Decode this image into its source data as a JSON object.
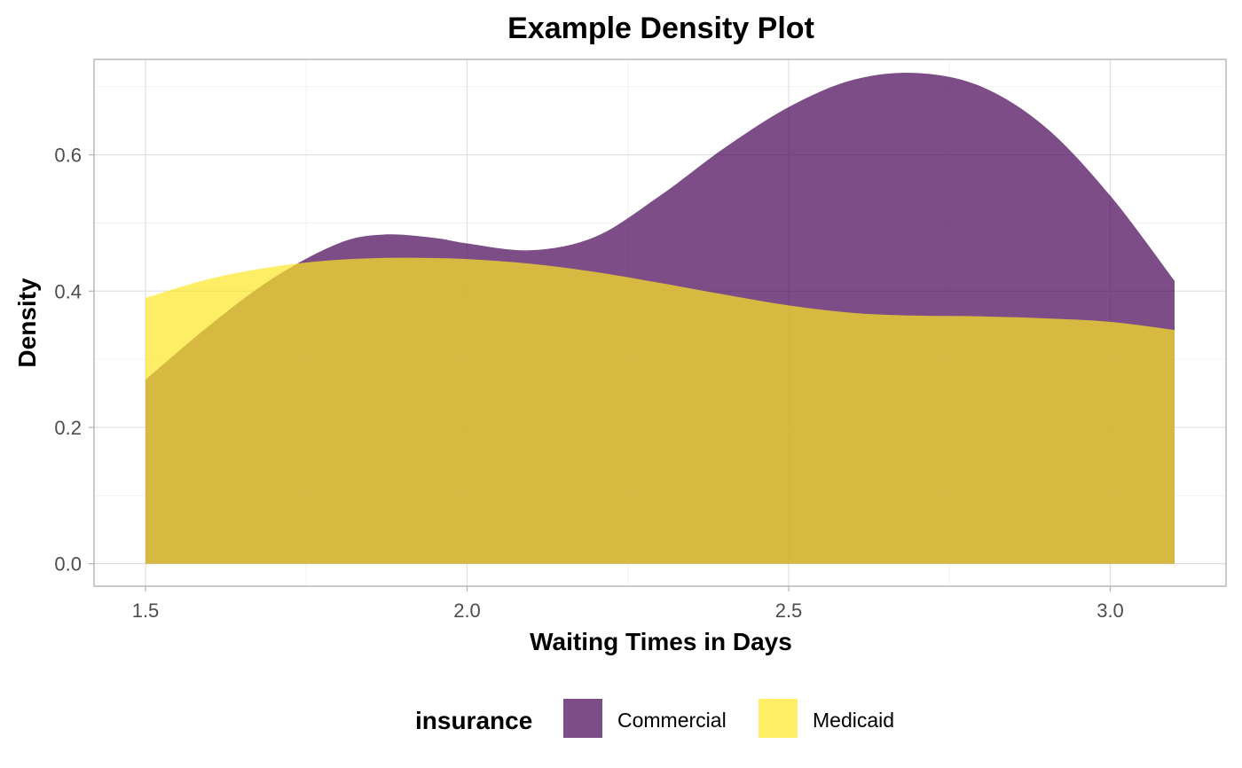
{
  "chart_data": {
    "type": "area",
    "title": "Example Density Plot",
    "xlabel": "Waiting Times in Days",
    "ylabel": "Density",
    "xlim": [
      1.42,
      3.18
    ],
    "ylim": [
      -0.033,
      0.74
    ],
    "x_ticks": [
      1.5,
      2.0,
      2.5,
      3.0
    ],
    "x_tick_labels": [
      "1.5",
      "2.0",
      "2.5",
      "3.0"
    ],
    "y_ticks": [
      0.0,
      0.2,
      0.4,
      0.6
    ],
    "y_tick_labels": [
      "0.0",
      "0.2",
      "0.4",
      "0.6"
    ],
    "grid": true,
    "legend": {
      "title": "insurance",
      "position": "bottom"
    },
    "series": [
      {
        "name": "Commercial",
        "color": "#440154",
        "opacity": 0.7,
        "x": [
          1.5,
          1.6,
          1.7,
          1.8,
          1.87,
          1.95,
          2.0,
          2.1,
          2.2,
          2.3,
          2.4,
          2.5,
          2.6,
          2.7,
          2.8,
          2.9,
          3.0,
          3.1
        ],
        "y": [
          0.27,
          0.35,
          0.42,
          0.47,
          0.483,
          0.478,
          0.47,
          0.46,
          0.48,
          0.54,
          0.61,
          0.67,
          0.71,
          0.72,
          0.7,
          0.64,
          0.54,
          0.415
        ]
      },
      {
        "name": "Medicaid",
        "color": "#FDE725",
        "opacity": 0.7,
        "x": [
          1.5,
          1.6,
          1.7,
          1.8,
          1.9,
          2.0,
          2.1,
          2.2,
          2.3,
          2.4,
          2.5,
          2.6,
          2.7,
          2.8,
          2.9,
          3.0,
          3.1
        ],
        "y": [
          0.39,
          0.418,
          0.436,
          0.446,
          0.449,
          0.447,
          0.44,
          0.428,
          0.412,
          0.395,
          0.379,
          0.368,
          0.364,
          0.363,
          0.36,
          0.355,
          0.343
        ]
      }
    ]
  }
}
